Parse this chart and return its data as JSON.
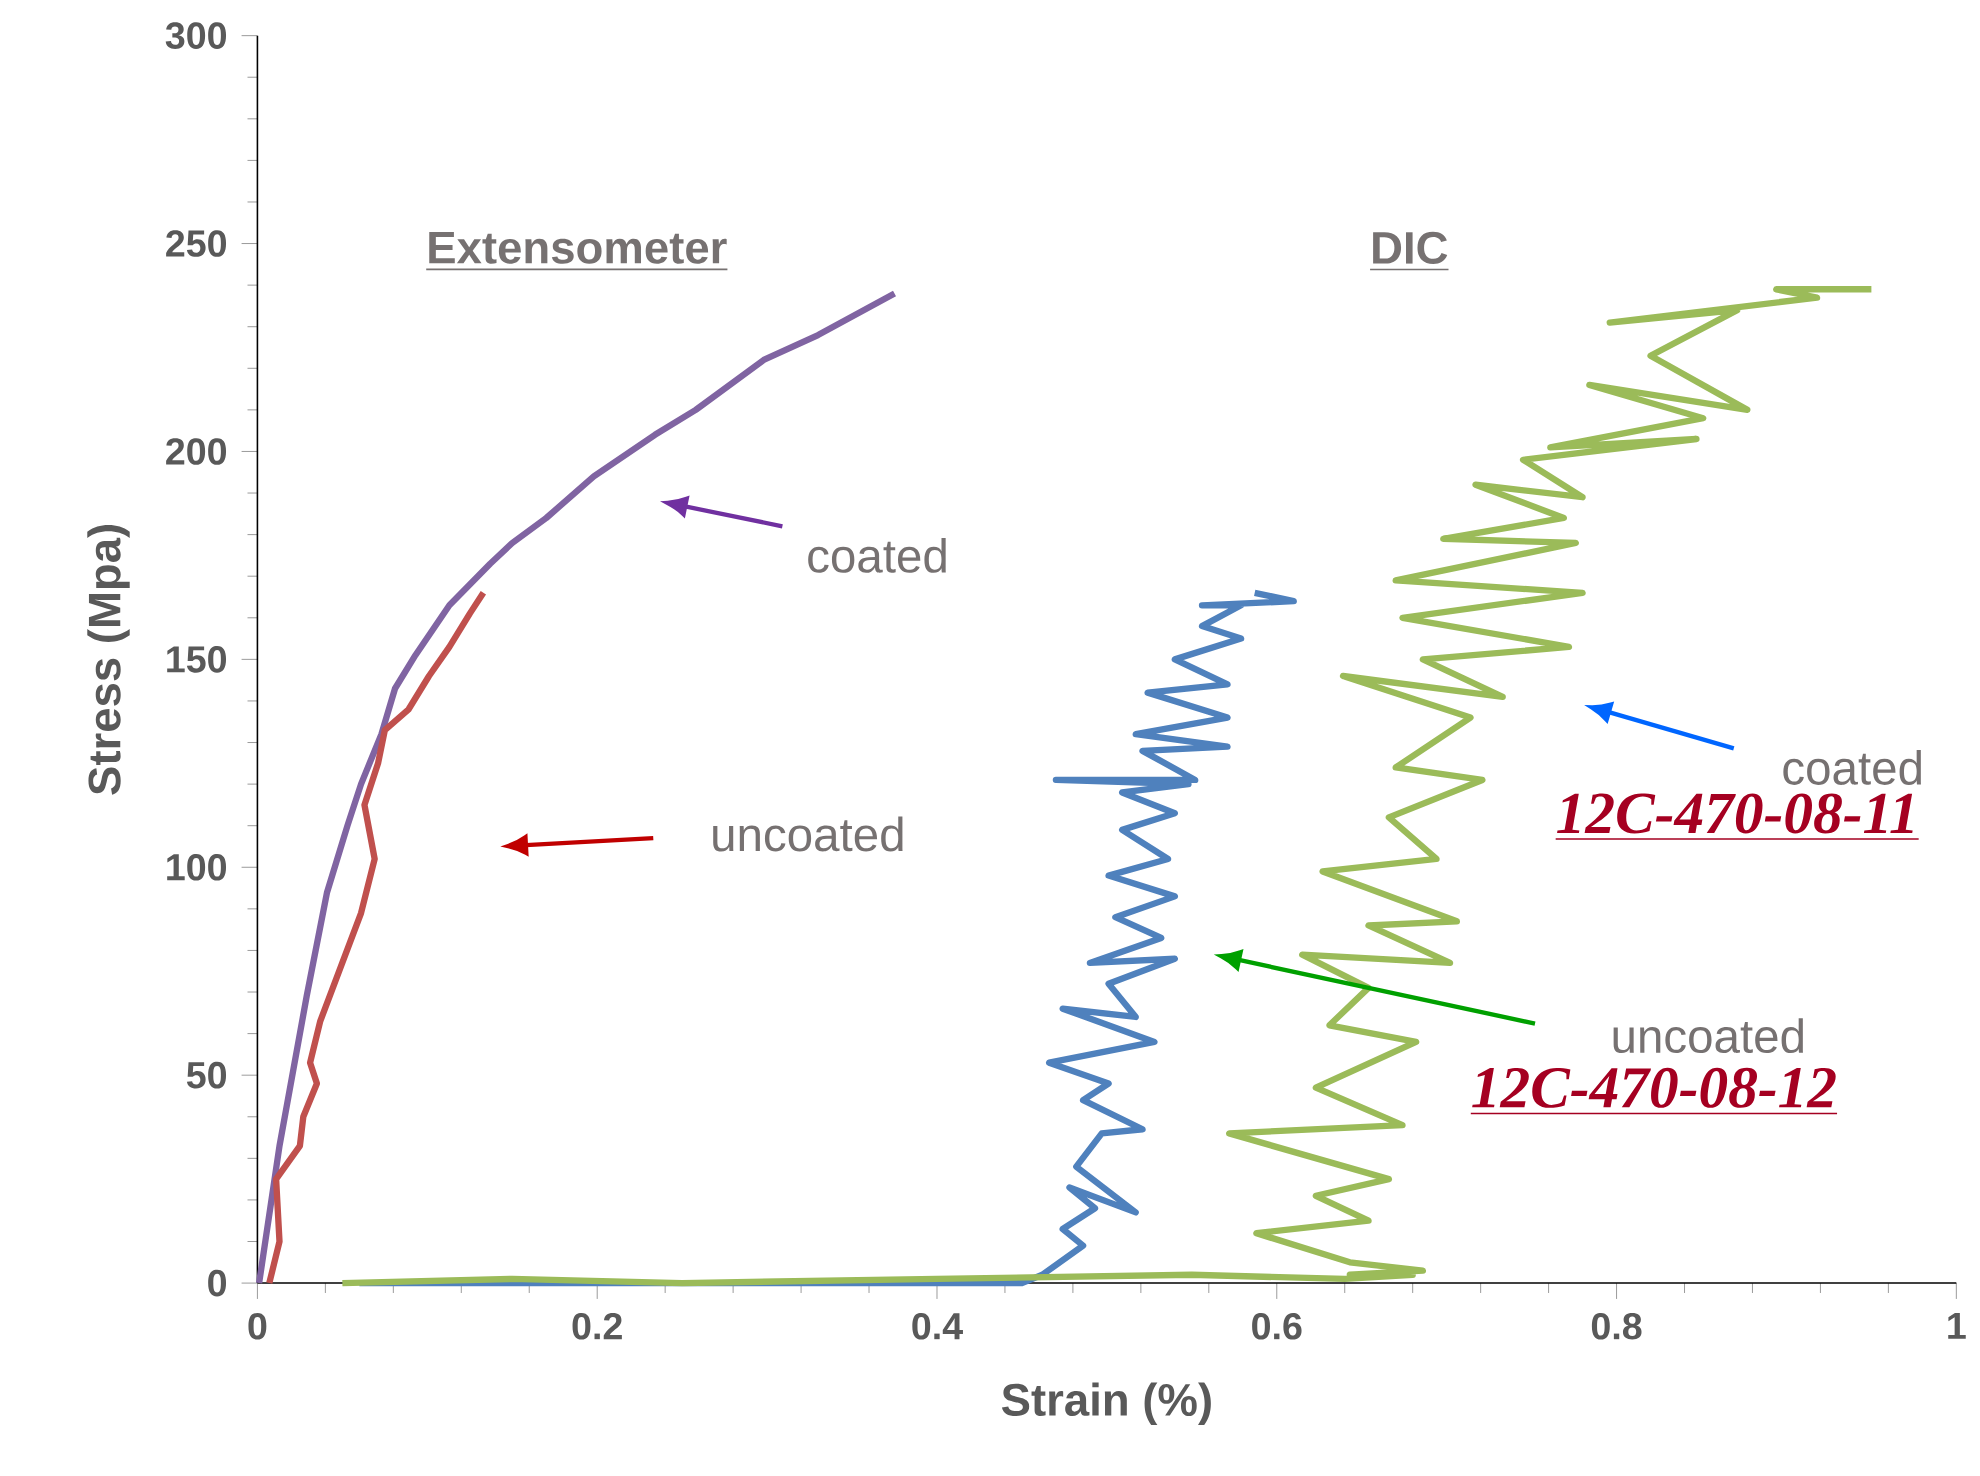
{
  "chart_data": {
    "type": "line",
    "xlabel": "Strain (%)",
    "ylabel": "Stress (Mpa)",
    "xlim": [
      0,
      1
    ],
    "ylim": [
      0,
      300
    ],
    "xticks": [
      0,
      0.2,
      0.4,
      0.6,
      0.8,
      1
    ],
    "yticks": [
      0,
      50,
      100,
      150,
      200,
      250,
      300
    ],
    "annotations": [
      "Extensometer",
      "DIC",
      "coated",
      "uncoated",
      "coated",
      "12C-470-08-11",
      "uncoated",
      "12C-470-08-12"
    ],
    "series": [
      {
        "color": "#8064a2",
        "x": [
          0.001,
          0.013,
          0.029,
          0.041,
          0.053,
          0.061,
          0.073,
          0.081,
          0.093,
          0.113,
          0.137,
          0.15,
          0.17,
          0.198,
          0.234,
          0.258,
          0.298,
          0.33,
          0.375
        ],
        "values": [
          0,
          33,
          69,
          94,
          110,
          120,
          132,
          143,
          151,
          163,
          173,
          178,
          184,
          194,
          204,
          210,
          222,
          228,
          238
        ]
      },
      {
        "color": "#c0504d",
        "x": [
          0.007,
          0.013,
          0.011,
          0.025,
          0.027,
          0.035,
          0.031,
          0.037,
          0.049,
          0.061,
          0.069,
          0.063,
          0.071,
          0.075,
          0.089,
          0.101,
          0.113,
          0.125,
          0.133
        ],
        "values": [
          0,
          10,
          25,
          33,
          40,
          48,
          53,
          63,
          76,
          89,
          102,
          115,
          125,
          133,
          138,
          146,
          153,
          161,
          166
        ]
      },
      {
        "color": "#4f81bd",
        "x": [
          0.06,
          0.3,
          0.45,
          0.462,
          0.486,
          0.474,
          0.493,
          0.478,
          0.517,
          0.482,
          0.497,
          0.521,
          0.486,
          0.501,
          0.466,
          0.528,
          0.474,
          0.517,
          0.501,
          0.54,
          0.49,
          0.532,
          0.505,
          0.54,
          0.501,
          0.536,
          0.509,
          0.54,
          0.509,
          0.548,
          0.47,
          0.552,
          0.521,
          0.571,
          0.517,
          0.571,
          0.524,
          0.571,
          0.54,
          0.579,
          0.556,
          0.579,
          0.556,
          0.61,
          0.587
        ],
        "values": [
          0,
          0,
          0,
          2,
          9,
          13,
          18,
          23,
          17,
          28,
          36,
          37,
          44,
          48,
          53,
          58,
          66,
          64,
          72,
          78,
          77,
          83,
          88,
          93,
          98,
          102,
          109,
          113,
          118,
          120,
          121,
          121,
          128,
          129,
          132,
          136,
          142,
          144,
          150,
          155,
          158,
          163,
          163,
          164,
          166
        ]
      },
      {
        "color": "#9bbb59",
        "x": [
          0.05,
          0.15,
          0.25,
          0.4,
          0.55,
          0.64,
          0.68,
          0.643,
          0.686,
          0.643,
          0.588,
          0.654,
          0.623,
          0.666,
          0.572,
          0.674,
          0.623,
          0.682,
          0.631,
          0.654,
          0.615,
          0.702,
          0.654,
          0.706,
          0.627,
          0.694,
          0.666,
          0.721,
          0.67,
          0.714,
          0.639,
          0.733,
          0.686,
          0.772,
          0.674,
          0.78,
          0.67,
          0.776,
          0.698,
          0.769,
          0.717,
          0.78,
          0.745,
          0.847,
          0.761,
          0.851,
          0.784,
          0.877,
          0.82,
          0.871,
          0.796,
          0.918,
          0.894,
          0.95
        ],
        "values": [
          0,
          1,
          0,
          1,
          2,
          1,
          2,
          2,
          3,
          5,
          12,
          15,
          21,
          25,
          36,
          38,
          47,
          58,
          62,
          71,
          79,
          77,
          86,
          87,
          99,
          102,
          112,
          121,
          124,
          136,
          146,
          141,
          150,
          153,
          160,
          166,
          169,
          178,
          179,
          184,
          192,
          189,
          198,
          203,
          201,
          208,
          216,
          210,
          223,
          234,
          231,
          237,
          239,
          239
        ]
      }
    ]
  }
}
